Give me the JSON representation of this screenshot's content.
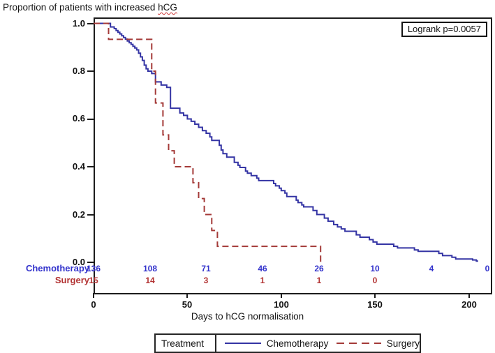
{
  "header": {
    "title_before": "Proportion of patients with increased ",
    "title_underlined": "hCG"
  },
  "chart_data": {
    "type": "line",
    "subtype": "kaplan_meier_step",
    "title": "Proportion of patients with increased hCG",
    "xlabel": "Days to hCG normalisation",
    "ylabel": "",
    "xlim": [
      0,
      212
    ],
    "ylim": [
      0,
      1.0
    ],
    "grid": false,
    "x_ticks": [
      0,
      50,
      100,
      150,
      200
    ],
    "y_tick_labels": [
      "1.0",
      "0.8",
      "0.6",
      "0.4",
      "0.2",
      "0.0"
    ],
    "annotation": "Logrank p=0.0057",
    "legend": {
      "title": "Treatment",
      "position": "bottom"
    },
    "series": [
      {
        "name": "Chemotherapy",
        "color": "#3434a4",
        "line_style": "solid",
        "end_day": 205,
        "steps": [
          [
            0,
            1.0
          ],
          [
            9,
            0.985
          ],
          [
            11,
            0.978
          ],
          [
            12,
            0.97
          ],
          [
            13,
            0.963
          ],
          [
            14,
            0.956
          ],
          [
            15,
            0.948
          ],
          [
            16,
            0.941
          ],
          [
            17,
            0.934
          ],
          [
            18,
            0.926
          ],
          [
            19,
            0.919
          ],
          [
            20,
            0.912
          ],
          [
            21,
            0.904
          ],
          [
            22,
            0.897
          ],
          [
            23,
            0.889
          ],
          [
            24,
            0.875
          ],
          [
            25,
            0.86
          ],
          [
            26,
            0.845
          ],
          [
            27,
            0.825
          ],
          [
            28,
            0.81
          ],
          [
            29,
            0.8
          ],
          [
            31,
            0.79
          ],
          [
            33,
            0.755
          ],
          [
            36,
            0.742
          ],
          [
            39,
            0.732
          ],
          [
            41,
            0.645
          ],
          [
            46,
            0.625
          ],
          [
            48,
            0.615
          ],
          [
            50,
            0.6
          ],
          [
            52,
            0.59
          ],
          [
            54,
            0.578
          ],
          [
            56,
            0.565
          ],
          [
            58,
            0.551
          ],
          [
            60,
            0.54
          ],
          [
            62,
            0.525
          ],
          [
            63,
            0.51
          ],
          [
            67,
            0.49
          ],
          [
            68,
            0.47
          ],
          [
            69,
            0.455
          ],
          [
            71,
            0.44
          ],
          [
            75,
            0.418
          ],
          [
            77,
            0.406
          ],
          [
            78,
            0.397
          ],
          [
            81,
            0.382
          ],
          [
            82,
            0.373
          ],
          [
            84,
            0.363
          ],
          [
            87,
            0.352
          ],
          [
            88,
            0.342
          ],
          [
            96,
            0.33
          ],
          [
            97,
            0.32
          ],
          [
            99,
            0.31
          ],
          [
            100,
            0.3
          ],
          [
            102,
            0.29
          ],
          [
            103,
            0.275
          ],
          [
            108,
            0.26
          ],
          [
            109,
            0.25
          ],
          [
            111,
            0.24
          ],
          [
            112,
            0.232
          ],
          [
            117,
            0.217
          ],
          [
            119,
            0.2
          ],
          [
            123,
            0.185
          ],
          [
            125,
            0.172
          ],
          [
            128,
            0.158
          ],
          [
            130,
            0.148
          ],
          [
            132,
            0.14
          ],
          [
            134,
            0.13
          ],
          [
            140,
            0.115
          ],
          [
            142,
            0.105
          ],
          [
            147,
            0.095
          ],
          [
            149,
            0.085
          ],
          [
            151,
            0.076
          ],
          [
            160,
            0.067
          ],
          [
            162,
            0.06
          ],
          [
            171,
            0.052
          ],
          [
            173,
            0.046
          ],
          [
            184,
            0.037
          ],
          [
            186,
            0.028
          ],
          [
            191,
            0.021
          ],
          [
            193,
            0.014
          ],
          [
            202,
            0.01
          ],
          [
            204,
            0.005
          ]
        ]
      },
      {
        "name": "Surgery",
        "color": "#a43a38",
        "line_style": "dashed",
        "end_day": 121,
        "steps": [
          [
            0,
            1.0
          ],
          [
            8,
            0.933
          ],
          [
            31,
            0.8
          ],
          [
            33,
            0.667
          ],
          [
            37,
            0.533
          ],
          [
            40,
            0.467
          ],
          [
            43,
            0.4
          ],
          [
            53,
            0.333
          ],
          [
            56,
            0.267
          ],
          [
            59,
            0.2
          ],
          [
            63,
            0.133
          ],
          [
            66,
            0.067
          ],
          [
            121,
            0.0
          ]
        ]
      }
    ],
    "at_risk_table": {
      "days": [
        0,
        30,
        60,
        90,
        120,
        150,
        180,
        210
      ],
      "rows": [
        {
          "label": "Chemotherapy",
          "color": "#3333cc",
          "values": [
            136,
            108,
            71,
            46,
            26,
            10,
            4,
            0
          ]
        },
        {
          "label": "Surgery",
          "color": "#b23232",
          "values": [
            15,
            14,
            3,
            1,
            1,
            0
          ]
        }
      ]
    }
  }
}
